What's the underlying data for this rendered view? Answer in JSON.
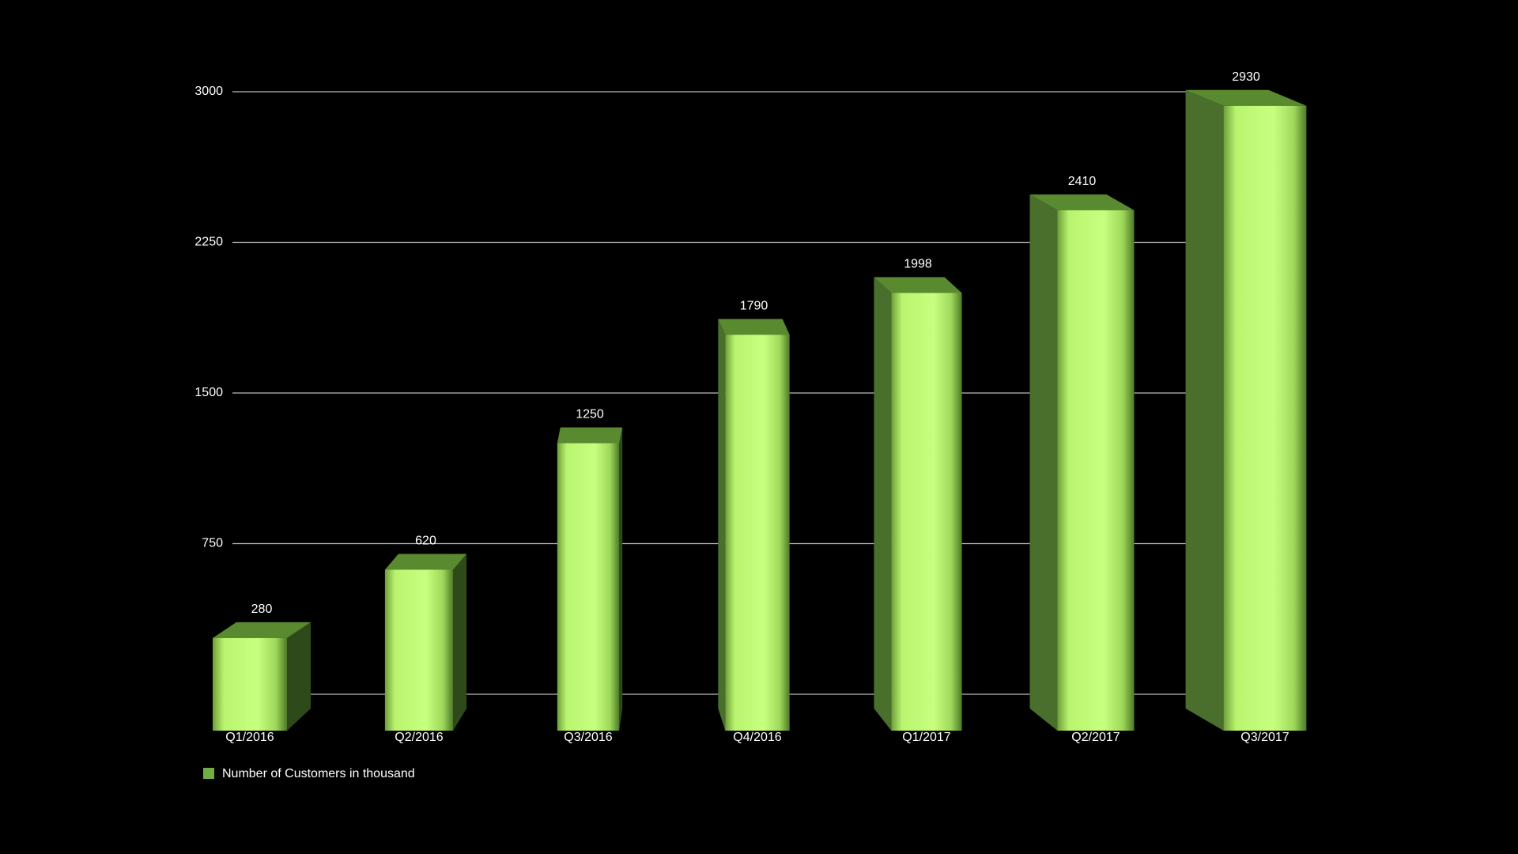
{
  "chart_data": {
    "type": "bar3d",
    "categories": [
      "Q1/2016",
      "Q2/2016",
      "Q3/2016",
      "Q4/2016",
      "Q1/2017",
      "Q2/2017",
      "Q3/2017"
    ],
    "series": [
      {
        "name": "Number of Customers in thousand",
        "color": "#70ad47",
        "values": [
          280,
          620,
          1250,
          1790,
          1998,
          2410,
          2930
        ]
      }
    ],
    "ylim": [
      0,
      3000
    ],
    "yticks": [
      0,
      750,
      1500,
      2250,
      3000
    ],
    "grid": true,
    "legend": "bottom-left"
  }
}
